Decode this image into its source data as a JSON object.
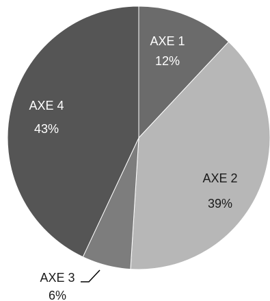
{
  "chart_data": {
    "type": "pie",
    "title": "",
    "start_angle_deg": 0,
    "direction": "clockwise",
    "slices": [
      {
        "label": "AXE 1",
        "value": 12,
        "display_value": "12%",
        "color": "#6b6b6b",
        "text_color": "#ffffff"
      },
      {
        "label": "AXE 2",
        "value": 39,
        "display_value": "39%",
        "color": "#b7b7b7",
        "text_color": "#1a1a1a"
      },
      {
        "label": "AXE 3",
        "value": 6,
        "display_value": "6%",
        "color": "#7d7d7d",
        "text_color": "#1a1a1a",
        "label_outside": true
      },
      {
        "label": "AXE 4",
        "value": 43,
        "display_value": "43%",
        "color": "#555555",
        "text_color": "#ffffff"
      }
    ]
  }
}
